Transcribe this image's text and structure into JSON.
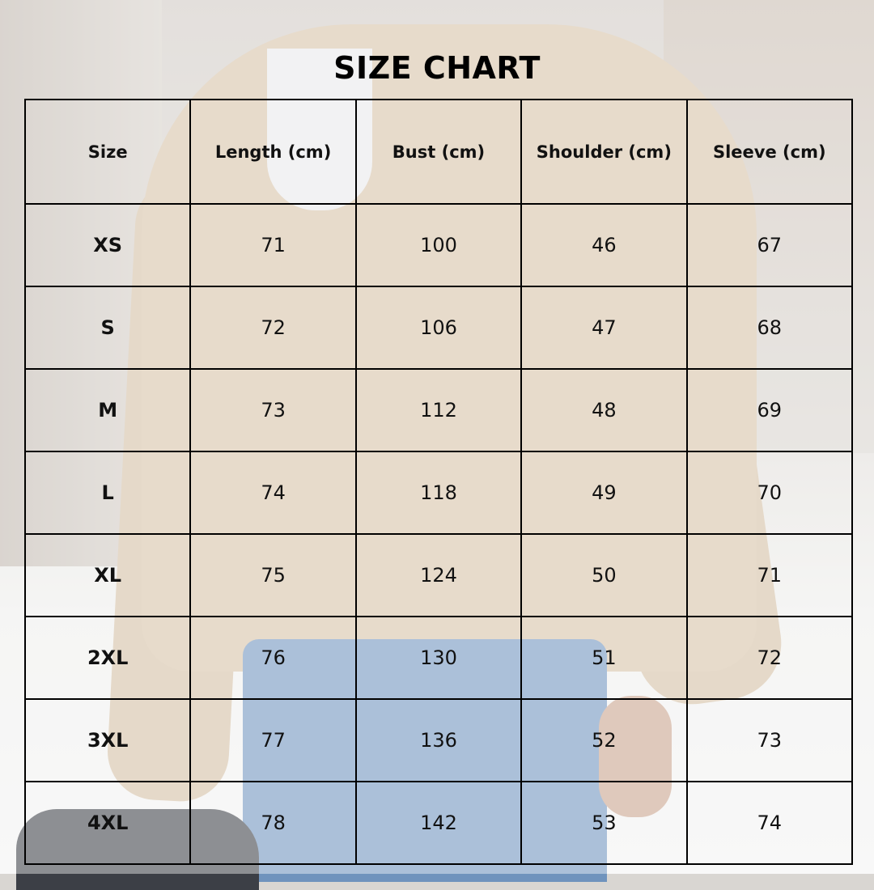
{
  "title": "SIZE CHART",
  "table": {
    "headers": [
      "Size",
      "Length (cm)",
      "Bust (cm)",
      "Shoulder (cm)",
      "Sleeve (cm)"
    ],
    "rows": [
      [
        "XS",
        "71",
        "100",
        "46",
        "67"
      ],
      [
        "S",
        "72",
        "106",
        "47",
        "68"
      ],
      [
        "M",
        "73",
        "112",
        "48",
        "69"
      ],
      [
        "L",
        "74",
        "118",
        "49",
        "70"
      ],
      [
        "XL",
        "75",
        "124",
        "50",
        "71"
      ],
      [
        "2XL",
        "76",
        "130",
        "51",
        "72"
      ],
      [
        "3XL",
        "77",
        "136",
        "52",
        "73"
      ],
      [
        "4XL",
        "78",
        "142",
        "53",
        "74"
      ]
    ]
  }
}
